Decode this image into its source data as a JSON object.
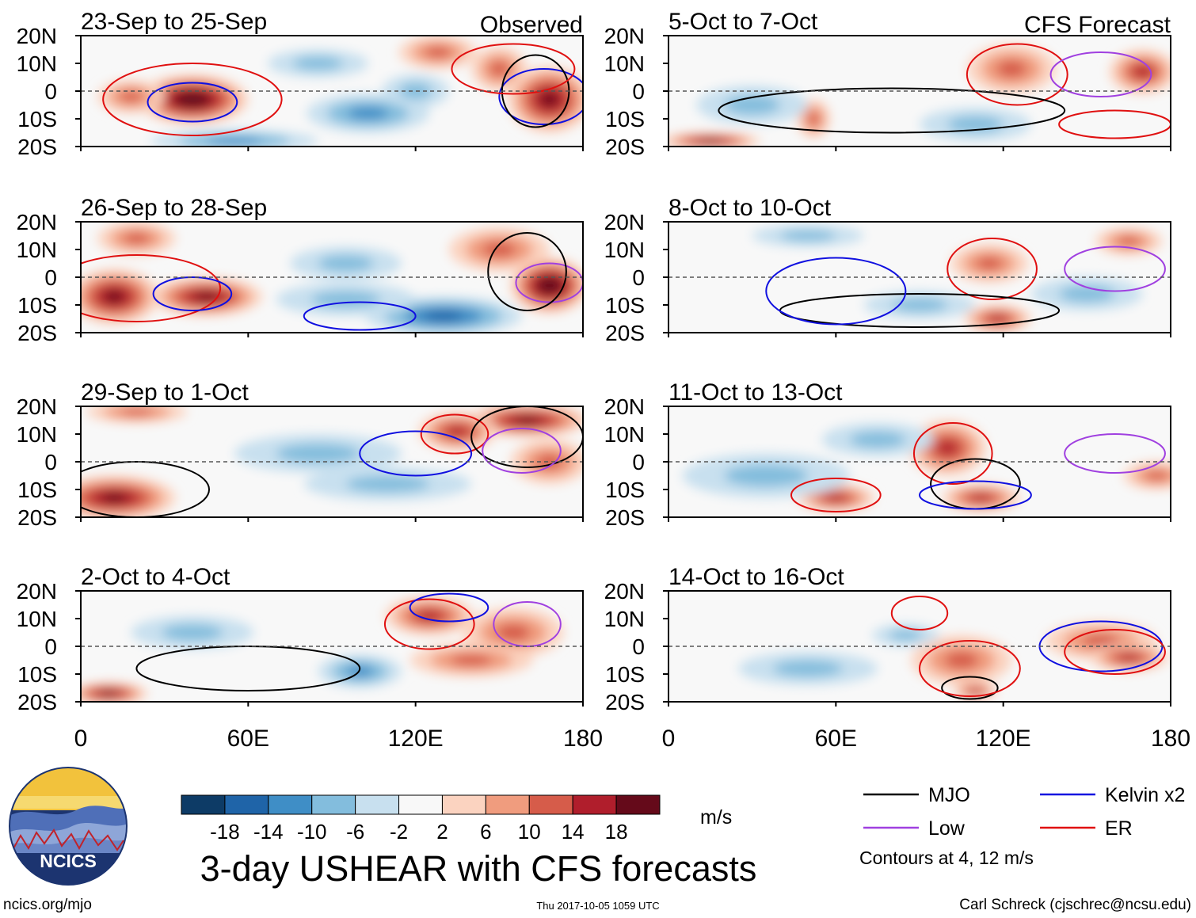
{
  "chart_data": {
    "type": "heatmap",
    "title": "3-day USHEAR with CFS forecasts",
    "units": "m/s",
    "observed_label": "Observed",
    "forecast_label": "CFS Forecast",
    "lat_ticks": [
      "20N",
      "10N",
      "0",
      "10S",
      "20S"
    ],
    "lat_values": [
      20,
      10,
      0,
      -10,
      -20
    ],
    "lon_ticks": [
      "0",
      "60E",
      "120E",
      "180"
    ],
    "lon_values": [
      0,
      60,
      120,
      180
    ],
    "xlim": [
      0,
      180
    ],
    "ylim": [
      -20,
      20
    ],
    "colorbar": {
      "levels": [
        "-18",
        "-14",
        "-10",
        "-6",
        "-2",
        "2",
        "6",
        "10",
        "14",
        "18"
      ],
      "colors": [
        "#0d3b66",
        "#1f64a8",
        "#3f8ec6",
        "#83bddd",
        "#c8e0ef",
        "#f8f8f8",
        "#fbd3c0",
        "#f09c7e",
        "#d65c4a",
        "#b01e2c",
        "#650a1a"
      ]
    },
    "panels": [
      {
        "label": "23-Sep to 25-Sep",
        "source": "Observed",
        "blobs": [
          {
            "lon": 40,
            "lat": -3,
            "rx": 20,
            "ry": 9,
            "v": 20
          },
          {
            "lon": 18,
            "lat": -2,
            "rx": 12,
            "ry": 6,
            "v": 10
          },
          {
            "lon": 168,
            "lat": -3,
            "rx": 15,
            "ry": 12,
            "v": 18
          },
          {
            "lon": 150,
            "lat": 8,
            "rx": 10,
            "ry": 8,
            "v": 10
          },
          {
            "lon": 128,
            "lat": 14,
            "rx": 14,
            "ry": 6,
            "v": 9
          },
          {
            "lon": 103,
            "lat": -8,
            "rx": 22,
            "ry": 7,
            "v": -11
          },
          {
            "lon": 55,
            "lat": -18,
            "rx": 30,
            "ry": 4,
            "v": -10
          },
          {
            "lon": 85,
            "lat": 10,
            "rx": 18,
            "ry": 5,
            "v": -5
          },
          {
            "lon": 120,
            "lat": 0,
            "rx": 12,
            "ry": 6,
            "v": -7
          }
        ],
        "contours": [
          {
            "c": "red",
            "lon": 40,
            "lat": -3,
            "rx": 32,
            "ry": 13
          },
          {
            "c": "blue",
            "lon": 40,
            "lat": -4,
            "rx": 16,
            "ry": 7
          },
          {
            "c": "blue",
            "lon": 166,
            "lat": -2,
            "rx": 16,
            "ry": 10
          },
          {
            "c": "black",
            "lon": 163,
            "lat": 0,
            "rx": 12,
            "ry": 13
          },
          {
            "c": "red",
            "lon": 155,
            "lat": 8,
            "rx": 22,
            "ry": 9
          }
        ]
      },
      {
        "label": "26-Sep to 28-Sep",
        "source": "Observed",
        "blobs": [
          {
            "lon": 12,
            "lat": -7,
            "rx": 16,
            "ry": 10,
            "v": 16
          },
          {
            "lon": 45,
            "lat": -7,
            "rx": 20,
            "ry": 7,
            "v": 16
          },
          {
            "lon": 168,
            "lat": -3,
            "rx": 14,
            "ry": 10,
            "v": 20
          },
          {
            "lon": 150,
            "lat": 10,
            "rx": 18,
            "ry": 8,
            "v": 11
          },
          {
            "lon": 20,
            "lat": 14,
            "rx": 14,
            "ry": 6,
            "v": 8
          },
          {
            "lon": 130,
            "lat": -14,
            "rx": 28,
            "ry": 7,
            "v": -12
          },
          {
            "lon": 95,
            "lat": -8,
            "rx": 25,
            "ry": 6,
            "v": -7
          },
          {
            "lon": 95,
            "lat": 5,
            "rx": 20,
            "ry": 6,
            "v": -5
          }
        ],
        "contours": [
          {
            "c": "red",
            "lon": 20,
            "lat": -4,
            "rx": 30,
            "ry": 12
          },
          {
            "c": "blue",
            "lon": 40,
            "lat": -6,
            "rx": 14,
            "ry": 6
          },
          {
            "c": "purple",
            "lon": 168,
            "lat": -2,
            "rx": 12,
            "ry": 7
          },
          {
            "c": "black",
            "lon": 160,
            "lat": 2,
            "rx": 14,
            "ry": 14
          },
          {
            "c": "blue",
            "lon": 100,
            "lat": -14,
            "rx": 20,
            "ry": 5
          }
        ]
      },
      {
        "label": "29-Sep to 1-Oct",
        "source": "Observed",
        "blobs": [
          {
            "lon": 12,
            "lat": -13,
            "rx": 22,
            "ry": 8,
            "v": 16
          },
          {
            "lon": 160,
            "lat": 15,
            "rx": 22,
            "ry": 6,
            "v": 18
          },
          {
            "lon": 135,
            "lat": 11,
            "rx": 14,
            "ry": 7,
            "v": 14
          },
          {
            "lon": 168,
            "lat": 0,
            "rx": 14,
            "ry": 8,
            "v": 8
          },
          {
            "lon": 85,
            "lat": 3,
            "rx": 30,
            "ry": 7,
            "v": -6
          },
          {
            "lon": 110,
            "lat": -8,
            "rx": 30,
            "ry": 6,
            "v": -6
          },
          {
            "lon": 20,
            "lat": 18,
            "rx": 18,
            "ry": 4,
            "v": 8
          }
        ],
        "contours": [
          {
            "c": "red",
            "lon": 134,
            "lat": 10,
            "rx": 12,
            "ry": 7
          },
          {
            "c": "blue",
            "lon": 120,
            "lat": 3,
            "rx": 20,
            "ry": 8
          },
          {
            "c": "black",
            "lon": 160,
            "lat": 9,
            "rx": 20,
            "ry": 11
          },
          {
            "c": "black",
            "lon": 20,
            "lat": -10,
            "rx": 26,
            "ry": 10
          },
          {
            "c": "purple",
            "lon": 158,
            "lat": 4,
            "rx": 14,
            "ry": 8
          }
        ]
      },
      {
        "label": "2-Oct to 4-Oct",
        "source": "Observed",
        "blobs": [
          {
            "lon": 10,
            "lat": -17,
            "rx": 14,
            "ry": 4,
            "v": 16
          },
          {
            "lon": 125,
            "lat": 11,
            "rx": 16,
            "ry": 7,
            "v": 12
          },
          {
            "lon": 155,
            "lat": 5,
            "rx": 18,
            "ry": 9,
            "v": 10
          },
          {
            "lon": 140,
            "lat": -5,
            "rx": 22,
            "ry": 6,
            "v": 8
          },
          {
            "lon": 40,
            "lat": 5,
            "rx": 22,
            "ry": 6,
            "v": -7
          },
          {
            "lon": 100,
            "lat": -9,
            "rx": 15,
            "ry": 6,
            "v": -9
          }
        ],
        "contours": [
          {
            "c": "red",
            "lon": 125,
            "lat": 8,
            "rx": 16,
            "ry": 9
          },
          {
            "c": "black",
            "lon": 60,
            "lat": -8,
            "rx": 40,
            "ry": 8
          },
          {
            "c": "purple",
            "lon": 160,
            "lat": 8,
            "rx": 12,
            "ry": 8
          },
          {
            "c": "blue",
            "lon": 132,
            "lat": 14,
            "rx": 14,
            "ry": 5
          }
        ]
      },
      {
        "label": "5-Oct to 7-Oct",
        "source": "CFS Forecast",
        "blobs": [
          {
            "lon": 123,
            "lat": 8,
            "rx": 16,
            "ry": 9,
            "v": 9
          },
          {
            "lon": 170,
            "lat": 7,
            "rx": 12,
            "ry": 8,
            "v": 12
          },
          {
            "lon": 15,
            "lat": -18,
            "rx": 18,
            "ry": 3,
            "v": 18
          },
          {
            "lon": 52,
            "lat": -10,
            "rx": 6,
            "ry": 7,
            "v": 9
          },
          {
            "lon": 30,
            "lat": -5,
            "rx": 20,
            "ry": 7,
            "v": -6
          },
          {
            "lon": 110,
            "lat": -12,
            "rx": 20,
            "ry": 6,
            "v": -5
          }
        ],
        "contours": [
          {
            "c": "red",
            "lon": 125,
            "lat": 6,
            "rx": 18,
            "ry": 11
          },
          {
            "c": "black",
            "lon": 80,
            "lat": -7,
            "rx": 62,
            "ry": 8
          },
          {
            "c": "purple",
            "lon": 155,
            "lat": 6,
            "rx": 18,
            "ry": 8
          },
          {
            "c": "red",
            "lon": 160,
            "lat": -12,
            "rx": 20,
            "ry": 5
          }
        ]
      },
      {
        "label": "8-Oct to 10-Oct",
        "source": "CFS Forecast",
        "blobs": [
          {
            "lon": 115,
            "lat": 5,
            "rx": 14,
            "ry": 7,
            "v": 11
          },
          {
            "lon": 118,
            "lat": -15,
            "rx": 12,
            "ry": 5,
            "v": 12
          },
          {
            "lon": 165,
            "lat": 13,
            "rx": 12,
            "ry": 5,
            "v": 10
          },
          {
            "lon": 50,
            "lat": 15,
            "rx": 20,
            "ry": 4,
            "v": -6
          },
          {
            "lon": 150,
            "lat": -6,
            "rx": 20,
            "ry": 6,
            "v": -6
          },
          {
            "lon": 90,
            "lat": -10,
            "rx": 20,
            "ry": 5,
            "v": -5
          }
        ],
        "contours": [
          {
            "c": "red",
            "lon": 116,
            "lat": 3,
            "rx": 16,
            "ry": 11
          },
          {
            "c": "purple",
            "lon": 160,
            "lat": 3,
            "rx": 18,
            "ry": 8
          },
          {
            "c": "black",
            "lon": 90,
            "lat": -12,
            "rx": 50,
            "ry": 6
          },
          {
            "c": "blue",
            "lon": 60,
            "lat": -5,
            "rx": 25,
            "ry": 12
          }
        ]
      },
      {
        "label": "11-Oct to 13-Oct",
        "source": "CFS Forecast",
        "blobs": [
          {
            "lon": 60,
            "lat": -13,
            "rx": 14,
            "ry": 5,
            "v": 12
          },
          {
            "lon": 100,
            "lat": 5,
            "rx": 14,
            "ry": 10,
            "v": 12
          },
          {
            "lon": 112,
            "lat": -13,
            "rx": 14,
            "ry": 5,
            "v": 12
          },
          {
            "lon": 175,
            "lat": -5,
            "rx": 12,
            "ry": 5,
            "v": 9
          },
          {
            "lon": 35,
            "lat": -5,
            "rx": 30,
            "ry": 8,
            "v": -6
          },
          {
            "lon": 75,
            "lat": 8,
            "rx": 20,
            "ry": 6,
            "v": -4
          }
        ],
        "contours": [
          {
            "c": "red",
            "lon": 102,
            "lat": 3,
            "rx": 14,
            "ry": 11
          },
          {
            "c": "red",
            "lon": 60,
            "lat": -12,
            "rx": 16,
            "ry": 6
          },
          {
            "c": "purple",
            "lon": 160,
            "lat": 3,
            "rx": 18,
            "ry": 7
          },
          {
            "c": "black",
            "lon": 110,
            "lat": -8,
            "rx": 16,
            "ry": 9
          },
          {
            "c": "blue",
            "lon": 110,
            "lat": -12,
            "rx": 20,
            "ry": 5
          }
        ]
      },
      {
        "label": "14-Oct to 16-Oct",
        "source": "CFS Forecast",
        "blobs": [
          {
            "lon": 105,
            "lat": -5,
            "rx": 18,
            "ry": 9,
            "v": 10
          },
          {
            "lon": 155,
            "lat": 2,
            "rx": 20,
            "ry": 7,
            "v": 11
          },
          {
            "lon": 165,
            "lat": -4,
            "rx": 14,
            "ry": 5,
            "v": 14
          },
          {
            "lon": 110,
            "lat": -16,
            "rx": 8,
            "ry": 3,
            "v": 14
          },
          {
            "lon": 85,
            "lat": 4,
            "rx": 12,
            "ry": 4,
            "v": -7
          },
          {
            "lon": 50,
            "lat": -8,
            "rx": 25,
            "ry": 6,
            "v": -4
          }
        ],
        "contours": [
          {
            "c": "red",
            "lon": 90,
            "lat": 12,
            "rx": 10,
            "ry": 6
          },
          {
            "c": "blue",
            "lon": 155,
            "lat": 0,
            "rx": 22,
            "ry": 9
          },
          {
            "c": "red",
            "lon": 160,
            "lat": -2,
            "rx": 18,
            "ry": 8
          },
          {
            "c": "black",
            "lon": 108,
            "lat": -15,
            "rx": 10,
            "ry": 4
          },
          {
            "c": "red",
            "lon": 108,
            "lat": -8,
            "rx": 18,
            "ry": 10
          }
        ]
      }
    ]
  },
  "legend": {
    "items": [
      {
        "label": "MJO",
        "color": "#000000"
      },
      {
        "label": "Kelvin x2",
        "color": "#1010e0"
      },
      {
        "label": "Low",
        "color": "#a040e0"
      },
      {
        "label": "ER",
        "color": "#e01010"
      }
    ],
    "contour_note": "Contours at 4, 12 m/s"
  },
  "logo": {
    "text": "NCICS"
  },
  "footer": {
    "url": "ncics.org/mjo",
    "timestamp": "Thu 2017-10-05 1059 UTC",
    "credit": "Carl Schreck (cjschrec@ncsu.edu)"
  }
}
